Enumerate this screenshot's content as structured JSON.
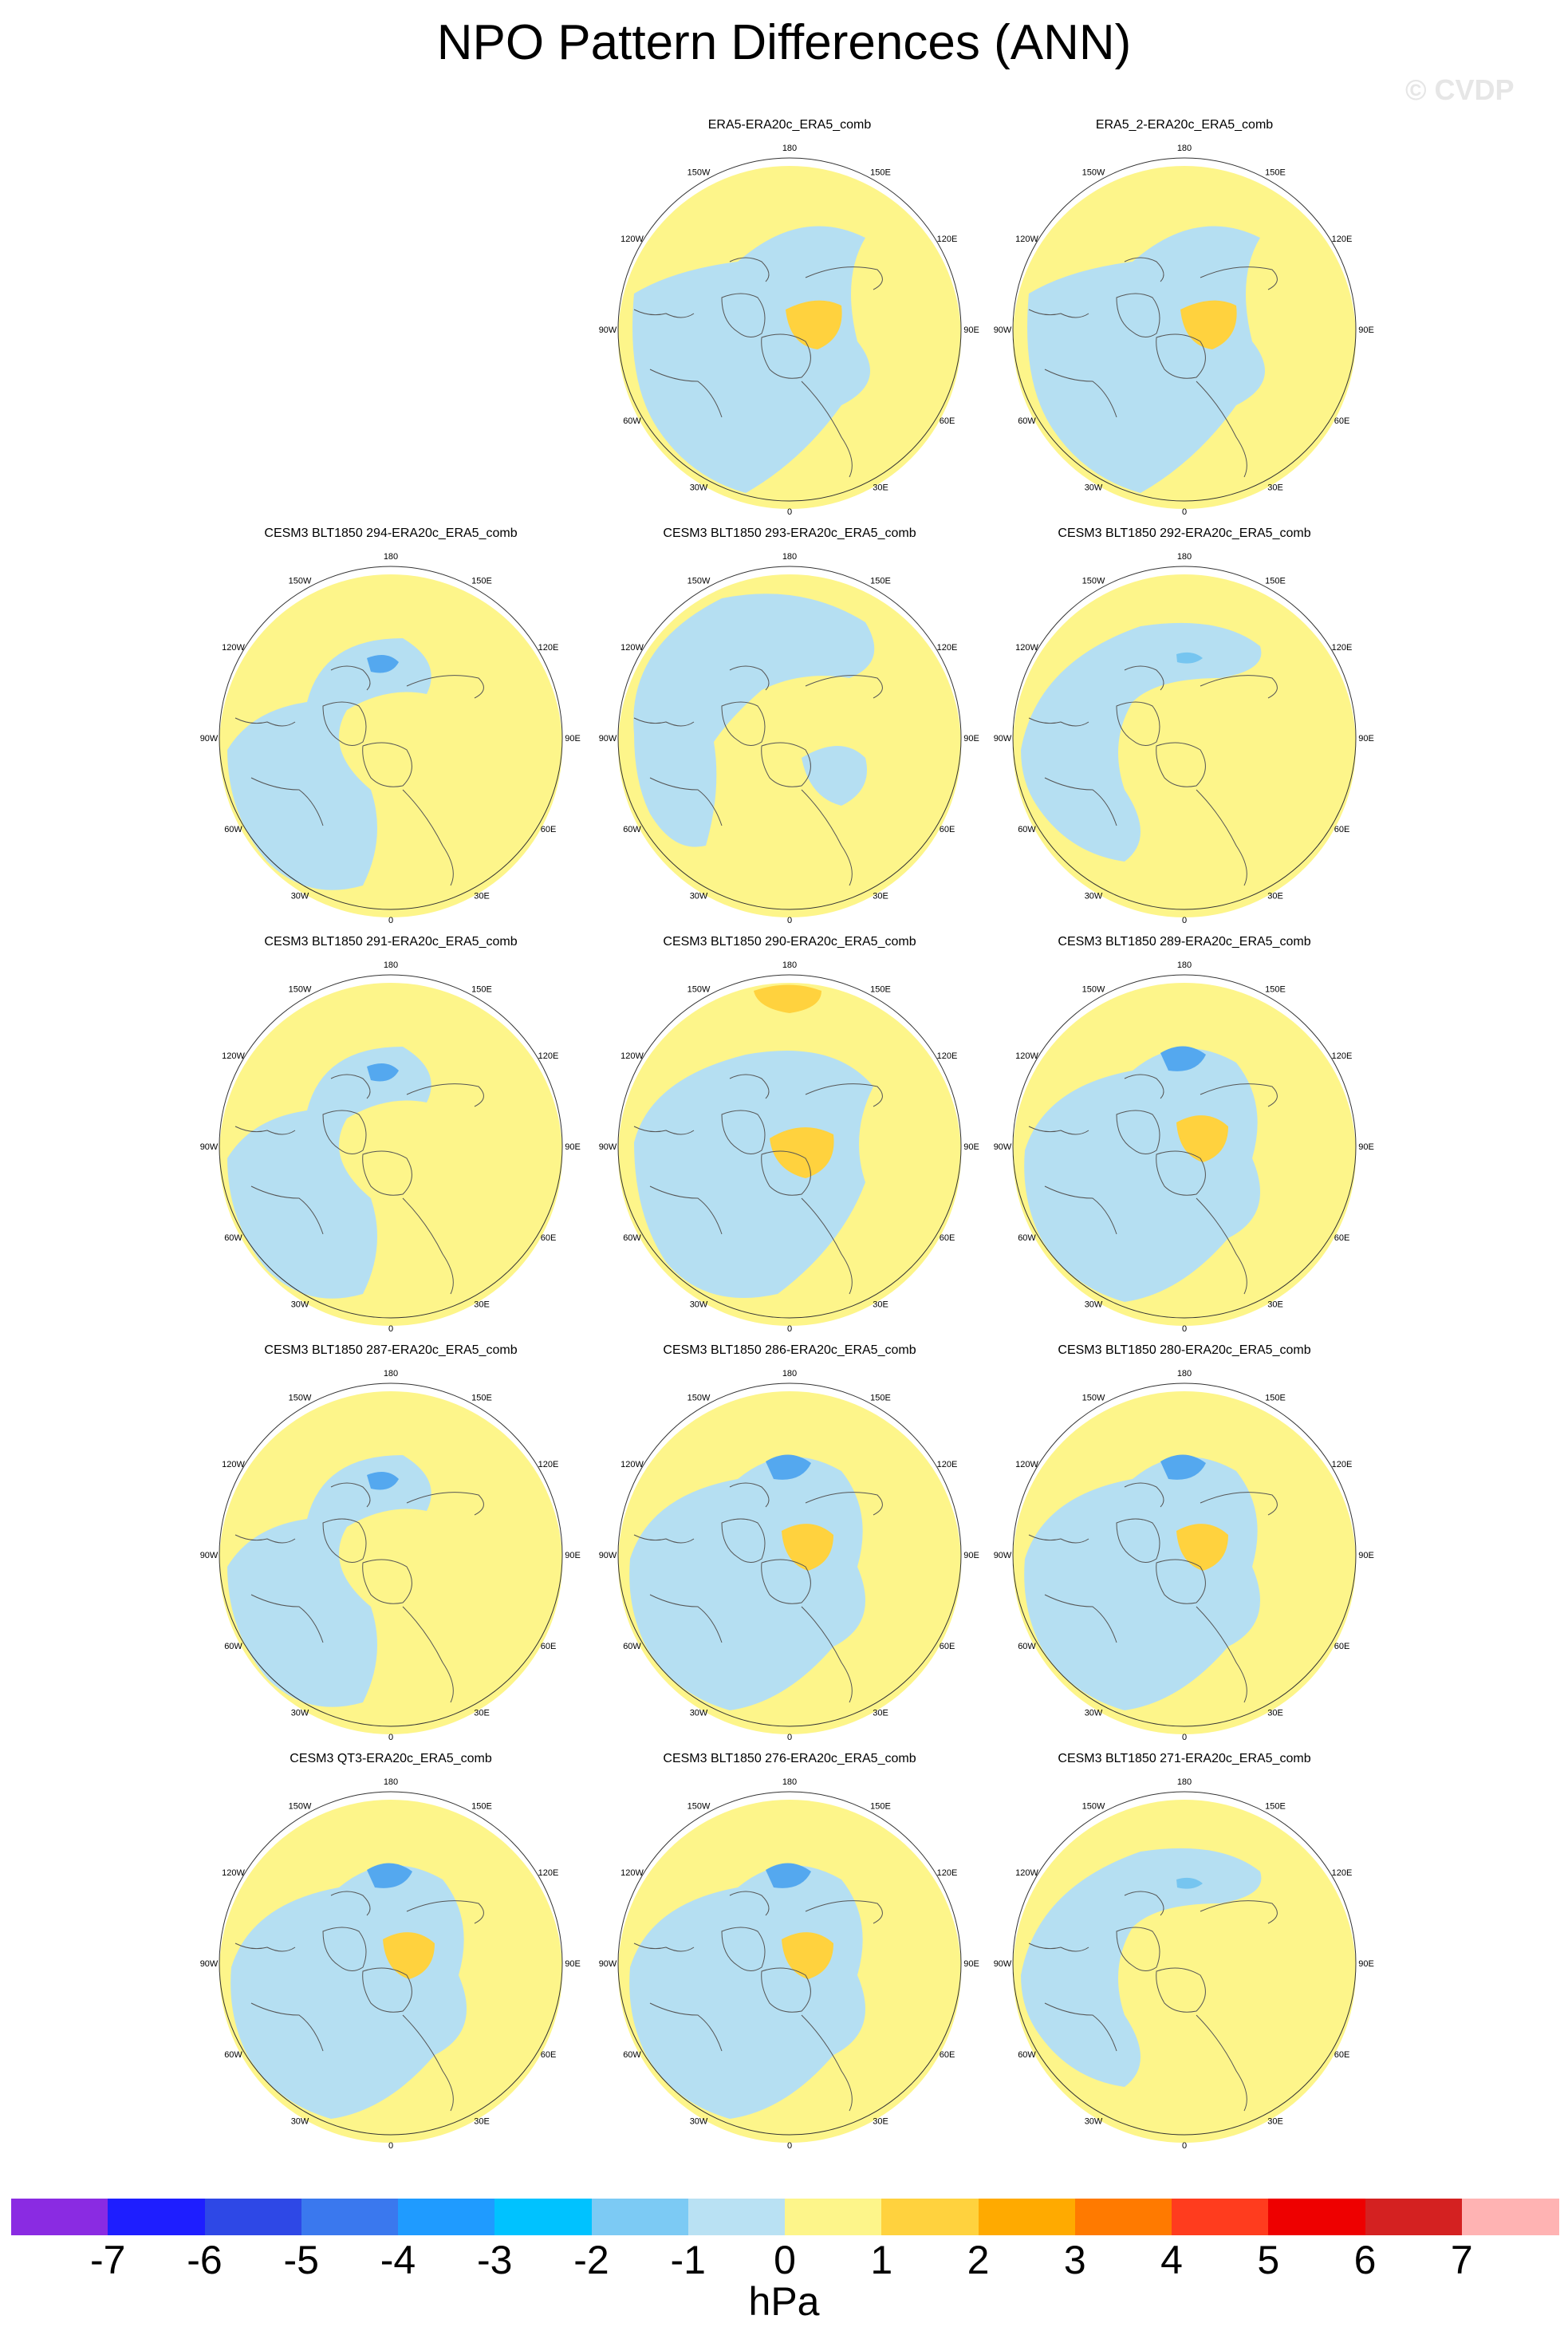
{
  "title": "NPO Pattern Differences (ANN)",
  "watermark": "© CVDP",
  "lon_labels": [
    "180",
    "150E",
    "120E",
    "90E",
    "60E",
    "30E",
    "0",
    "30W",
    "60W",
    "90W",
    "120W",
    "150W"
  ],
  "colors": {
    "ocean_neg": "#b5dff2",
    "ocean_pos": "#fdf58a",
    "contour_neg2": "#76c5f0",
    "contour_neg3": "#54a8ef",
    "contour_pos2": "#ffd23e",
    "contour_pos3": "#ff9a1a",
    "coast": "#555555"
  },
  "panels": [
    {
      "title": "ERA5-ERA20c_ERA5_comb",
      "pattern": "a"
    },
    {
      "title": "ERA5_2-ERA20c_ERA5_comb",
      "pattern": "a"
    },
    {
      "title": "CESM3 BLT1850 294-ERA20c_ERA5_comb",
      "pattern": "b"
    },
    {
      "title": "CESM3 BLT1850 293-ERA20c_ERA5_comb",
      "pattern": "c"
    },
    {
      "title": "CESM3 BLT1850 292-ERA20c_ERA5_comb",
      "pattern": "d"
    },
    {
      "title": "CESM3 BLT1850 291-ERA20c_ERA5_comb",
      "pattern": "b"
    },
    {
      "title": "CESM3 BLT1850 290-ERA20c_ERA5_comb",
      "pattern": "e"
    },
    {
      "title": "CESM3 BLT1850 289-ERA20c_ERA5_comb",
      "pattern": "f"
    },
    {
      "title": "CESM3 BLT1850 287-ERA20c_ERA5_comb",
      "pattern": "b"
    },
    {
      "title": "CESM3 BLT1850 286-ERA20c_ERA5_comb",
      "pattern": "f"
    },
    {
      "title": "CESM3 BLT1850 280-ERA20c_ERA5_comb",
      "pattern": "f"
    },
    {
      "title": "CESM3 QT3-ERA20c_ERA5_comb",
      "pattern": "f"
    },
    {
      "title": "CESM3 BLT1850 276-ERA20c_ERA5_comb",
      "pattern": "f"
    },
    {
      "title": "CESM3 BLT1850 271-ERA20c_ERA5_comb",
      "pattern": "d"
    }
  ],
  "colorbar": {
    "ticks": [
      "-7",
      "-6",
      "-5",
      "-4",
      "-3",
      "-2",
      "-1",
      "0",
      "1",
      "2",
      "3",
      "4",
      "5",
      "6",
      "7"
    ],
    "colors": [
      "#8a2be2",
      "#1e1eff",
      "#2e48e6",
      "#3a78ee",
      "#1f9bff",
      "#00c2ff",
      "#7ccaf4",
      "#b9e1f3",
      "#fdf58a",
      "#ffd23e",
      "#ffaa00",
      "#ff7a00",
      "#ff3c1e",
      "#ee0000",
      "#d42121",
      "#ffb3b3"
    ],
    "units": "hPa"
  }
}
